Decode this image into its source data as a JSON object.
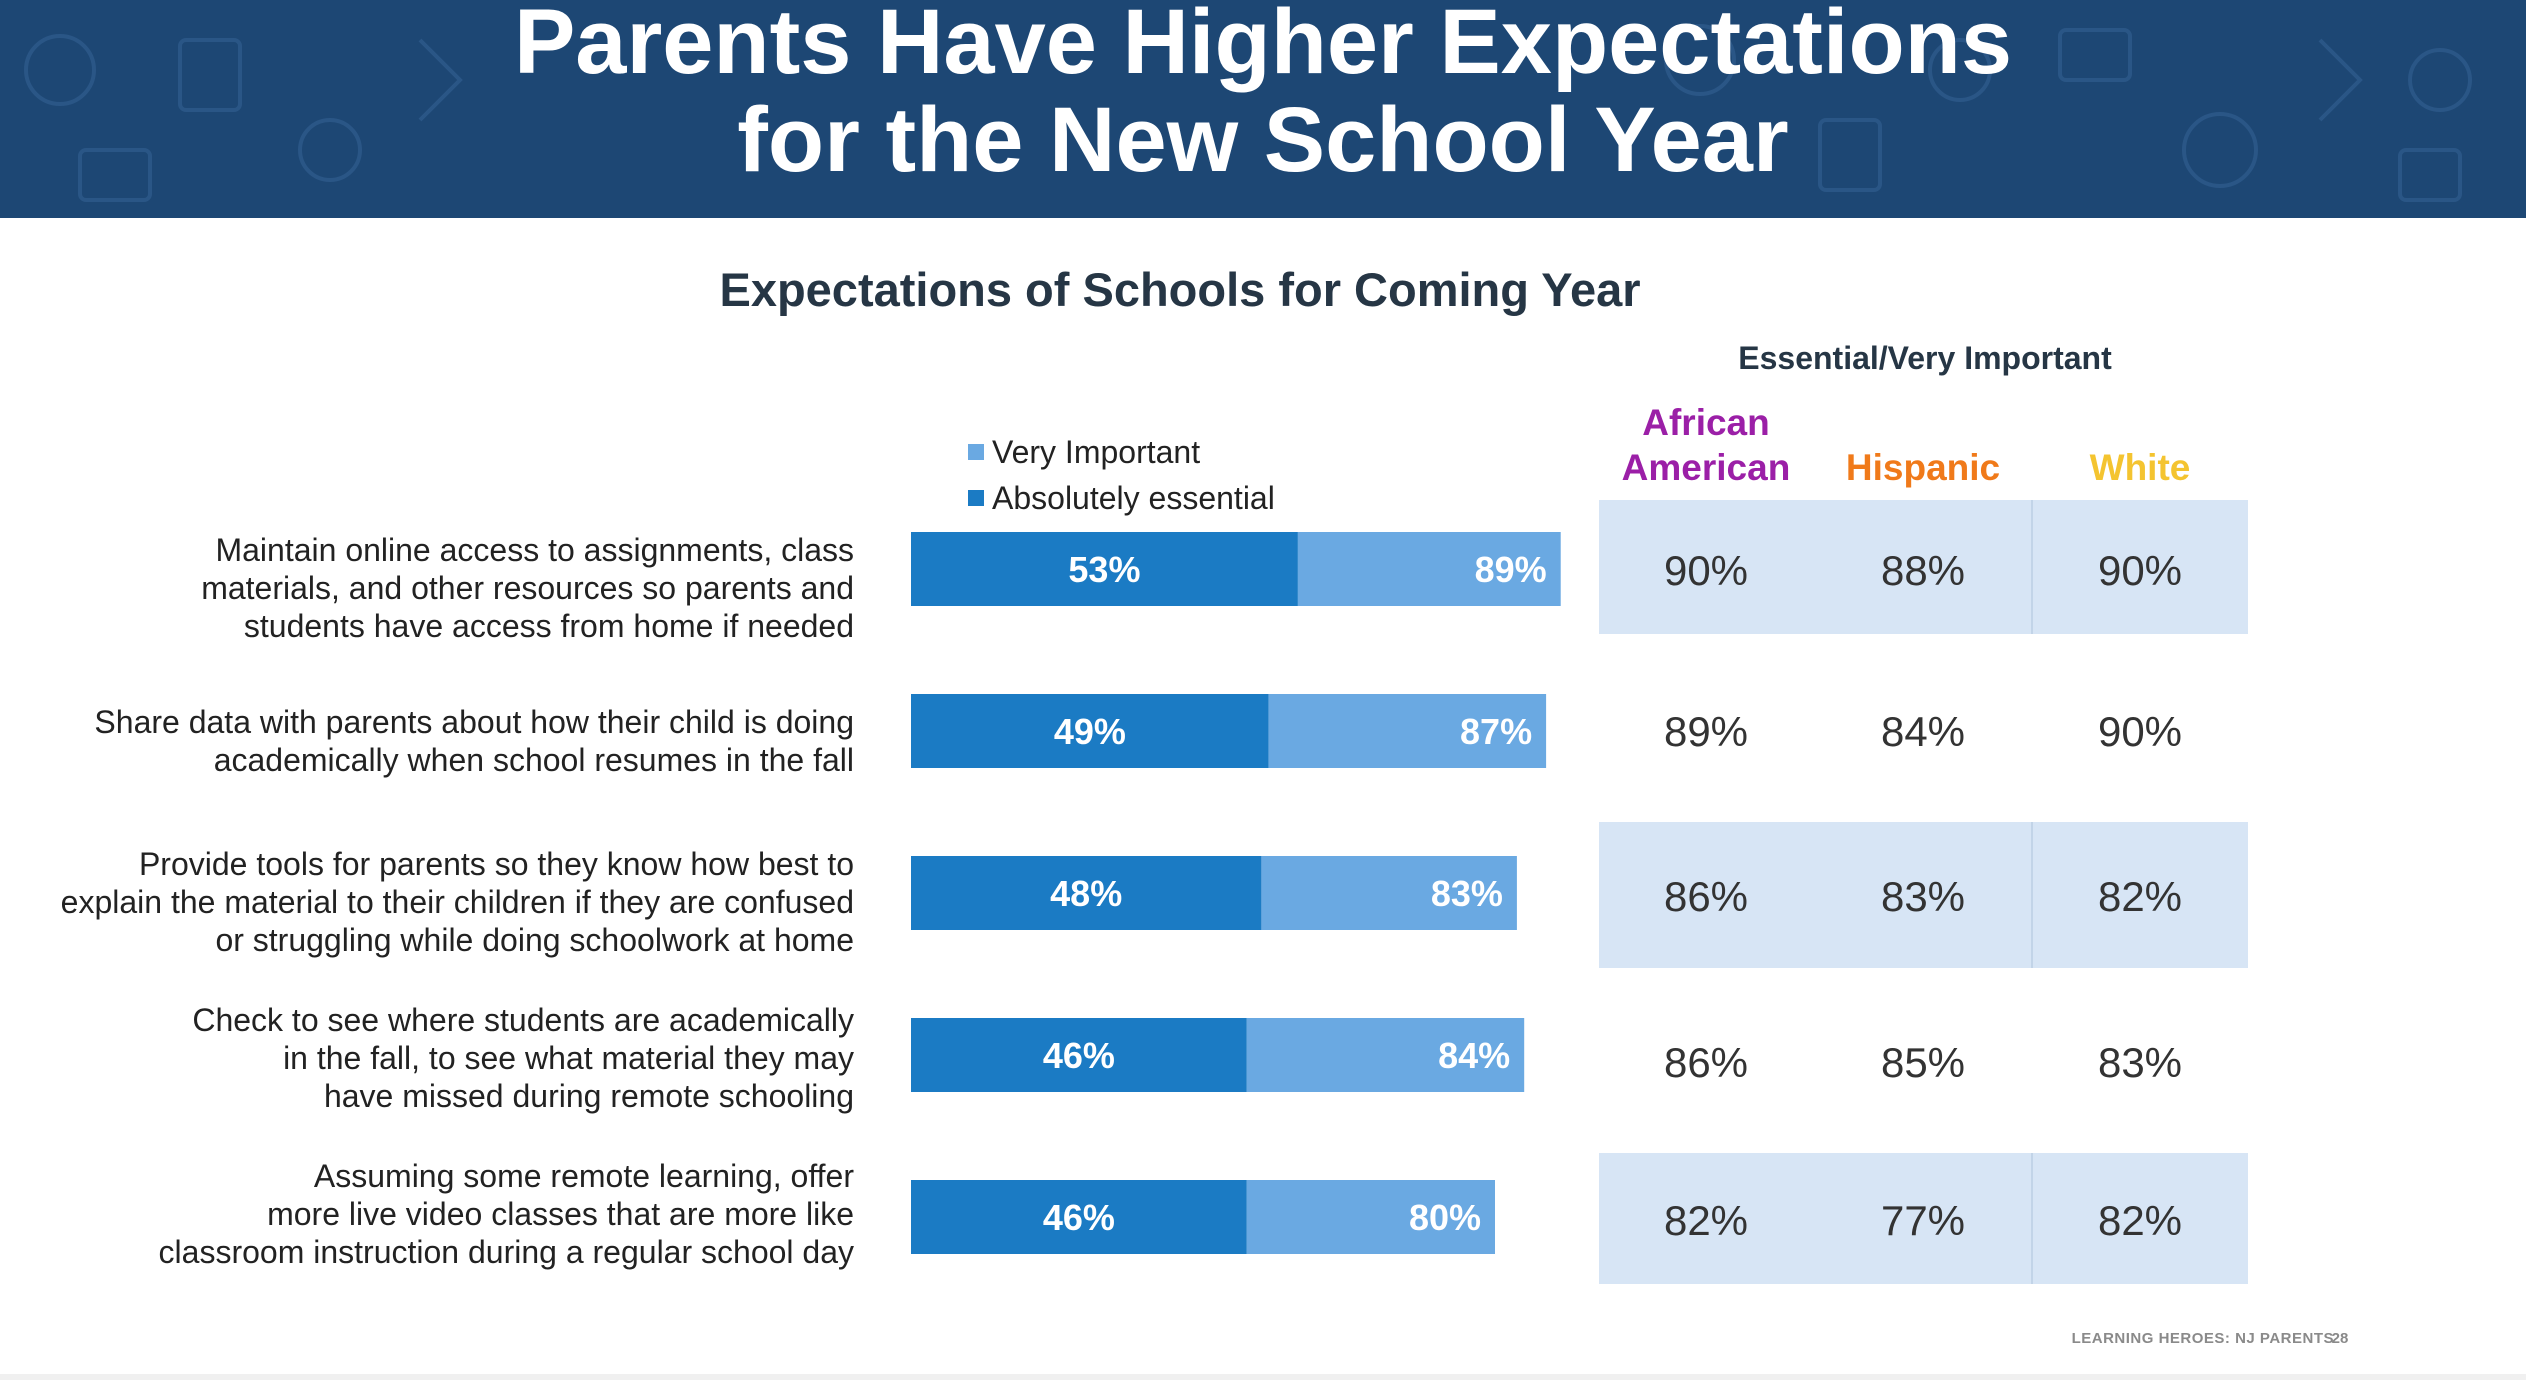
{
  "page_title": {
    "line1": "Parents Have Higher Expectations",
    "line2": "for the New School Year"
  },
  "chart_data": {
    "type": "bar",
    "orientation": "horizontal",
    "stacked": true,
    "title": "Expectations of Schools for Coming Year",
    "xlabel": "",
    "ylabel": "",
    "xlim": [
      0,
      100
    ],
    "grid": false,
    "legend_placement": "top",
    "categories": [
      "Maintain online access to assignments, class materials, and other resources so parents and students have access from home if needed",
      "Share data with parents about how their child is doing academically when school resumes in the fall",
      "Provide tools for parents so they know how best to explain the material to their children if they are confused or struggling while doing schoolwork at home",
      "Check to see where students are academically in the fall, to see what material they may have missed during remote schooling",
      "Assuming some remote learning, offer more live video classes that are more like classroom instruction during a regular school day"
    ],
    "label_lines": [
      [
        "Maintain online access to assignments, class",
        "materials, and other resources so parents and",
        "students have access from home if needed"
      ],
      [
        "Share data with parents about how their child is doing",
        "academically when school resumes in the fall"
      ],
      [
        "Provide tools for parents so they know how best to",
        "explain the material to their children if they are confused",
        "or struggling while doing schoolwork at home"
      ],
      [
        "Check to see where students are academically",
        "in the fall, to see what material they may",
        "have missed during remote schooling"
      ],
      [
        "Assuming some remote learning, offer",
        "more live video classes that are more like",
        "classroom instruction during a regular school day"
      ]
    ],
    "series": [
      {
        "name": "Absolutely essential",
        "color": "#1b7bc4",
        "values": [
          53,
          49,
          48,
          46,
          46
        ],
        "labels": [
          "53%",
          "49%",
          "48%",
          "46%",
          "46%"
        ]
      },
      {
        "name": "Very Important",
        "color": "#6aa9e2",
        "totals": [
          89,
          87,
          83,
          84,
          80
        ],
        "labels": [
          "89%",
          "87%",
          "83%",
          "84%",
          "80%"
        ]
      }
    ],
    "legend": [
      "Very Important",
      "Absolutely essential"
    ]
  },
  "table": {
    "group_header": "Essential/Very Important",
    "columns": [
      {
        "name": "African American",
        "lines": [
          "African",
          "American"
        ],
        "color": "#9b1fa7"
      },
      {
        "name": "Hispanic",
        "lines": [
          "Hispanic"
        ],
        "color": "#f07a1a"
      },
      {
        "name": "White",
        "lines": [
          "White"
        ],
        "color": "#f4c430"
      }
    ],
    "rows": [
      [
        "90%",
        "88%",
        "90%"
      ],
      [
        "89%",
        "84%",
        "90%"
      ],
      [
        "86%",
        "83%",
        "82%"
      ],
      [
        "86%",
        "85%",
        "83%"
      ],
      [
        "82%",
        "77%",
        "82%"
      ]
    ]
  },
  "footer": {
    "source": "LEARNING HEROES: NJ PARENTS",
    "page": "28"
  }
}
